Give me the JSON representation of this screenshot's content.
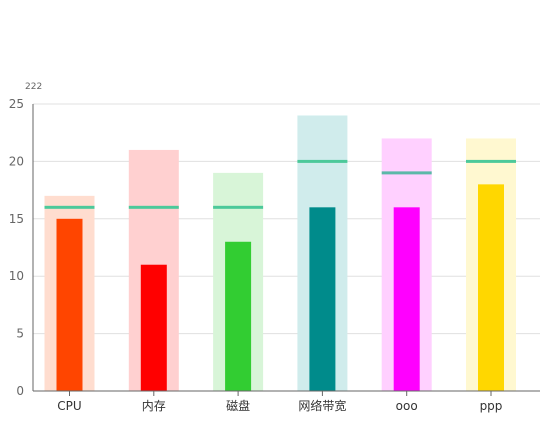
{
  "chart_data": {
    "type": "bar",
    "ylabel": "222",
    "ylim": [
      0,
      25
    ],
    "yticks": [
      0,
      5,
      10,
      15,
      20,
      25
    ],
    "grid": true,
    "categories": [
      "CPU",
      "内存",
      "磁盘",
      "网络带宽",
      "ooo",
      "ppp"
    ],
    "series": [
      {
        "role": "capacity",
        "values": [
          17,
          21,
          19,
          24,
          22,
          22
        ]
      },
      {
        "role": "actual",
        "values": [
          15,
          11,
          13,
          16,
          16,
          18
        ]
      },
      {
        "role": "target",
        "values": [
          16,
          16,
          16,
          20,
          19,
          20
        ]
      }
    ],
    "colors": {
      "actual": [
        "#FF4500",
        "#FF0000",
        "#32CD32",
        "#008B8B",
        "#FF00FF",
        "#FFD700"
      ],
      "capacity": [
        "#FFDDCF",
        "#FFD0D0",
        "#D8F5D8",
        "#D0ECEC",
        "#FFD0FF",
        "#FFF8D0"
      ],
      "target": [
        "#4CC99A",
        "#4CC99A",
        "#4CC99A",
        "#4CC99A",
        "#5BB8A8",
        "#4CC99A"
      ],
      "axis": "#666666",
      "grid": "#E0E0E0",
      "text": "#333333",
      "tick_text": "#666666"
    }
  }
}
